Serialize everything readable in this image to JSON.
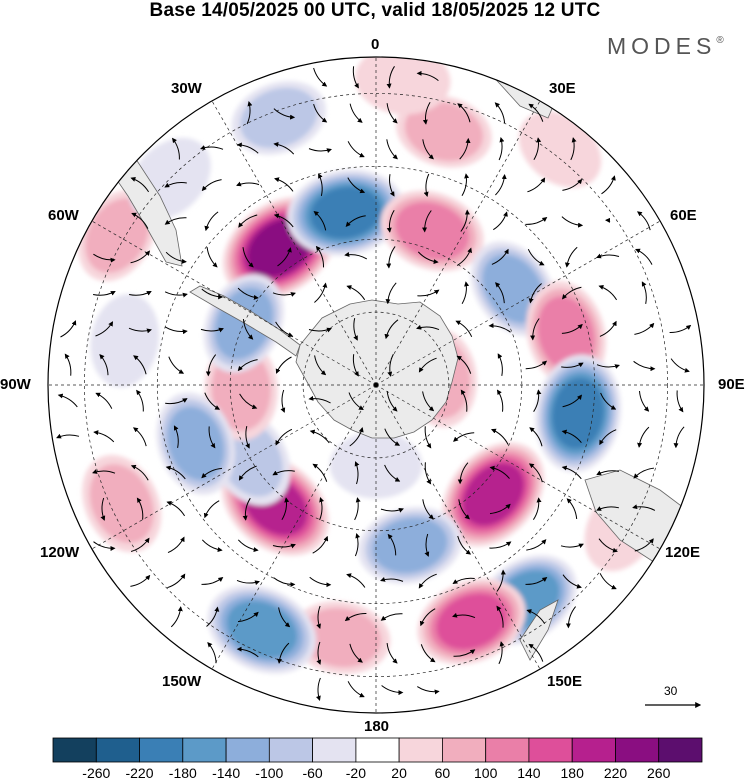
{
  "title": "Base 14/05/2025 00 UTC, valid 18/05/2025 12 UTC",
  "brand": {
    "name": "MODES",
    "mark": "®"
  },
  "longitude_labels": {
    "lon_0": "0",
    "lon_30e": "30E",
    "lon_60e": "60E",
    "lon_90e": "90E",
    "lon_120e": "120E",
    "lon_150e": "150E",
    "lon_180": "180",
    "lon_150w": "150W",
    "lon_120w": "120W",
    "lon_90w": "90W",
    "lon_60w": "60W",
    "lon_30w": "30W"
  },
  "reference_vector": {
    "value": "30"
  },
  "colorbar": {
    "ticks": [
      "-260",
      "-220",
      "-180",
      "-140",
      "-100",
      "-60",
      "-20",
      "20",
      "60",
      "100",
      "140",
      "180",
      "220",
      "260"
    ],
    "colors": [
      "#13405e",
      "#1f5f8e",
      "#3a7fb5",
      "#5c9ac8",
      "#8daedb",
      "#bcc7e6",
      "#e4e3f1",
      "#ffffff",
      "#f7d6dc",
      "#f1aebe",
      "#ea7fa8",
      "#de4f9a",
      "#b6208e",
      "#8a0e81",
      "#5c0e6e"
    ]
  },
  "map": {
    "projection": "south-polar-stereographic",
    "field_features": [
      {
        "lon": -35,
        "colat": 46,
        "value": 240
      },
      {
        "lon": -10,
        "colat": 48,
        "value": -200
      },
      {
        "lon": 20,
        "colat": 45,
        "value": 120
      },
      {
        "lon": 15,
        "colat": 72,
        "value": 60
      },
      {
        "lon": 38,
        "colat": 82,
        "value": 20
      },
      {
        "lon": 55,
        "colat": 46,
        "value": -100
      },
      {
        "lon": 75,
        "colat": 54,
        "value": 130
      },
      {
        "lon": 98,
        "colat": 56,
        "value": -200
      },
      {
        "lon": 84,
        "colat": 18,
        "value": 70
      },
      {
        "lon": 133,
        "colat": 44,
        "value": 200
      },
      {
        "lon": 145,
        "colat": 72,
        "value": -140
      },
      {
        "lon": 158,
        "colat": 70,
        "value": 160
      },
      {
        "lon": 168,
        "colat": 45,
        "value": -110
      },
      {
        "lon": -172,
        "colat": 70,
        "value": 80
      },
      {
        "lon": -155,
        "colat": 74,
        "value": -170
      },
      {
        "lon": -140,
        "colat": 43,
        "value": 210
      },
      {
        "lon": -120,
        "colat": 40,
        "value": -90
      },
      {
        "lon": -115,
        "colat": 77,
        "value": 90
      },
      {
        "lon": -92,
        "colat": 37,
        "value": 90
      },
      {
        "lon": -108,
        "colat": 52,
        "value": -110
      },
      {
        "lon": -65,
        "colat": 40,
        "value": -100
      },
      {
        "lon": -60,
        "colat": 82,
        "value": 60
      },
      {
        "lon": -80,
        "colat": 70,
        "value": -40
      },
      {
        "lon": -45,
        "colat": 80,
        "value": -40
      },
      {
        "lon": 5,
        "colat": 84,
        "value": 50
      },
      {
        "lon": 120,
        "colat": 78,
        "value": 40
      },
      {
        "lon": -180,
        "colat": 22,
        "value": -30
      },
      {
        "lon": -20,
        "colat": 78,
        "value": -60
      }
    ]
  }
}
